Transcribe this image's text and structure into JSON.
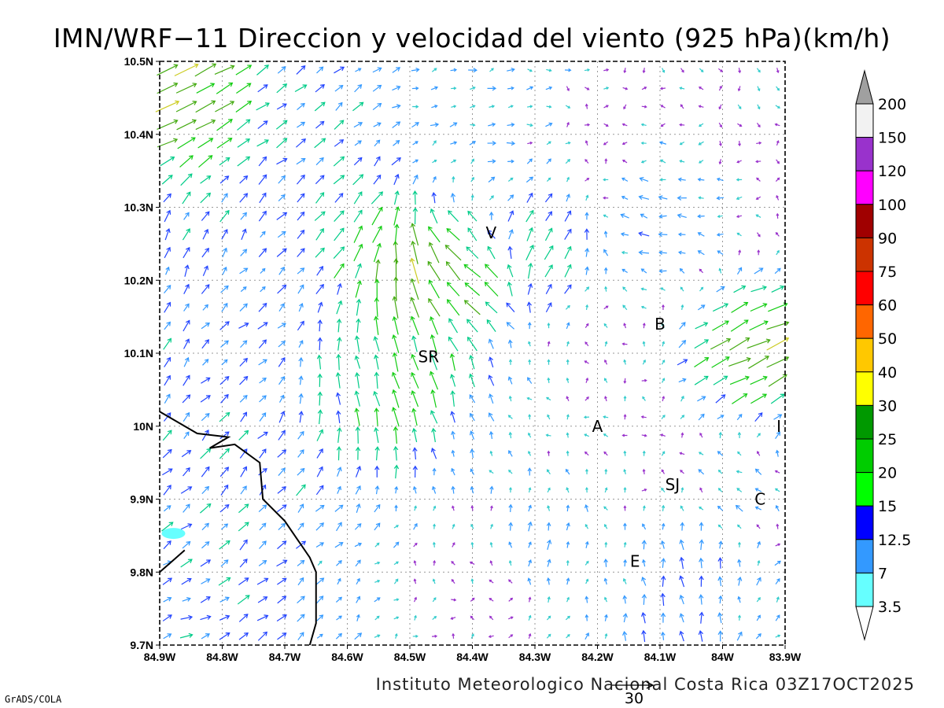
{
  "title": "IMN/WRF−11 Direccion y velocidad del viento (925 hPa)(km/h)",
  "footer": {
    "credit": "Instituto Meteorologico Nacional Costa Rica 03Z17OCT2025",
    "software": "GrADS/COLA",
    "reference_vector_value": "30"
  },
  "axes": {
    "x_ticks": [
      "84.9W",
      "84.8W",
      "84.7W",
      "84.6W",
      "84.5W",
      "84.4W",
      "84.3W",
      "84.2W",
      "84.1W",
      "84W",
      "83.9W"
    ],
    "y_ticks": [
      "10.5N",
      "10.4N",
      "10.3N",
      "10.2N",
      "10.1N",
      "10N",
      "9.9N",
      "9.8N",
      "9.7N"
    ],
    "lon_range": [
      -84.9,
      -83.9
    ],
    "lat_range": [
      9.7,
      10.5
    ],
    "grid": "dotted"
  },
  "colorbar": {
    "labels": [
      "200",
      "150",
      "120",
      "100",
      "90",
      "75",
      "60",
      "50",
      "40",
      "30",
      "25",
      "20",
      "15",
      "12.5",
      "7",
      "3.5"
    ],
    "colors": [
      "#a0a0a0",
      "#f2f2f2",
      "#9932cc",
      "#ff00ff",
      "#a00000",
      "#cc3300",
      "#ff0000",
      "#ff6600",
      "#ffc800",
      "#ffff00",
      "#009900",
      "#00cc00",
      "#00ff00",
      "#0000ff",
      "#3399ff",
      "#66ffff"
    ]
  },
  "places": [
    {
      "label": "V",
      "lon": -84.37,
      "lat": 10.265
    },
    {
      "label": "B",
      "lon": -84.1,
      "lat": 10.14
    },
    {
      "label": "SR",
      "lon": -84.47,
      "lat": 10.095
    },
    {
      "label": "A",
      "lon": -84.2,
      "lat": 10.0
    },
    {
      "label": "I",
      "lon": -83.91,
      "lat": 10.0
    },
    {
      "label": "SJ",
      "lon": -84.08,
      "lat": 9.92
    },
    {
      "label": "C",
      "lon": -83.94,
      "lat": 9.9
    },
    {
      "label": "E",
      "lon": -84.14,
      "lat": 9.815
    }
  ],
  "coastline": [
    [
      -84.9,
      10.02
    ],
    [
      -84.84,
      9.99
    ],
    [
      -84.79,
      9.985
    ],
    [
      -84.82,
      9.97
    ],
    [
      -84.78,
      9.975
    ],
    [
      -84.74,
      9.95
    ],
    [
      -84.735,
      9.9
    ],
    [
      -84.7,
      9.87
    ],
    [
      -84.68,
      9.845
    ],
    [
      -84.66,
      9.82
    ],
    [
      -84.65,
      9.8
    ],
    [
      -84.65,
      9.73
    ],
    [
      -84.66,
      9.7
    ]
  ],
  "coastline2": [
    [
      -84.9,
      9.8
    ],
    [
      -84.88,
      9.815
    ],
    [
      -84.86,
      9.83
    ]
  ],
  "island": {
    "lon": -84.878,
    "lat": 9.853
  },
  "wind_regions": [
    {
      "lon": -84.87,
      "lat": 10.45,
      "u": 30,
      "v": 14,
      "r": 0.07
    },
    {
      "lon": -84.7,
      "lat": 10.37,
      "u": 12,
      "v": 10,
      "r": 0.08
    },
    {
      "lon": -84.5,
      "lat": 10.22,
      "u": -4,
      "v": 40,
      "r": 0.04
    },
    {
      "lon": -84.56,
      "lat": 10.25,
      "u": 16,
      "v": 22,
      "r": 0.05
    },
    {
      "lon": -84.43,
      "lat": 10.22,
      "u": -28,
      "v": 18,
      "r": 0.06
    },
    {
      "lon": -84.28,
      "lat": 10.26,
      "u": 14,
      "v": 22,
      "r": 0.05
    },
    {
      "lon": -84.5,
      "lat": 10.05,
      "u": -8,
      "v": 26,
      "r": 0.08
    },
    {
      "lon": -84.62,
      "lat": 10.08,
      "u": -4,
      "v": 18,
      "r": 0.06
    },
    {
      "lon": -83.96,
      "lat": 10.09,
      "u": 30,
      "v": 14,
      "r": 0.06
    },
    {
      "lon": -84.1,
      "lat": 10.33,
      "u": -16,
      "v": 2,
      "r": 0.09
    },
    {
      "lon": -84.35,
      "lat": 10.4,
      "u": 8,
      "v": 2,
      "r": 0.09
    },
    {
      "lon": -84.2,
      "lat": 10.45,
      "u": 4,
      "v": -2,
      "r": 0.08
    },
    {
      "lon": -84.0,
      "lat": 10.42,
      "u": 3,
      "v": -3,
      "r": 0.08
    },
    {
      "lon": -84.18,
      "lat": 9.98,
      "u": -2,
      "v": 2,
      "r": 0.1
    },
    {
      "lon": -84.35,
      "lat": 9.95,
      "u": -4,
      "v": 3,
      "r": 0.08
    },
    {
      "lon": -84.75,
      "lat": 9.88,
      "u": 10,
      "v": 12,
      "r": 0.12
    },
    {
      "lon": -84.85,
      "lat": 9.75,
      "u": 14,
      "v": 4,
      "r": 0.08
    },
    {
      "lon": -84.3,
      "lat": 9.87,
      "u": 2,
      "v": 16,
      "r": 0.05
    },
    {
      "lon": -84.08,
      "lat": 9.78,
      "u": -3,
      "v": 14,
      "r": 0.06
    },
    {
      "lon": -83.97,
      "lat": 9.95,
      "u": -10,
      "v": 4,
      "r": 0.05
    },
    {
      "lon": -84.55,
      "lat": 9.8,
      "u": 4,
      "v": 3,
      "r": 0.07
    },
    {
      "lon": -84.42,
      "lat": 9.78,
      "u": -2,
      "v": 2,
      "r": 0.07
    },
    {
      "lon": -84.85,
      "lat": 10.2,
      "u": 4,
      "v": 14,
      "r": 0.1
    },
    {
      "lon": -84.75,
      "lat": 10.13,
      "u": 12,
      "v": 4,
      "r": 0.08
    }
  ]
}
